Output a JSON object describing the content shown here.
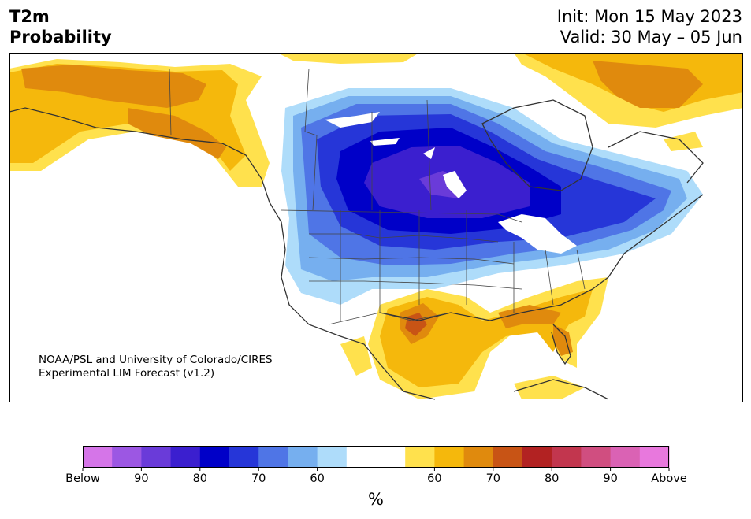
{
  "header": {
    "title_line1": "T2m",
    "title_line2": "Probability",
    "init": "Init: Mon 15 May 2023",
    "valid": "Valid: 30 May – 05 Jun"
  },
  "credit": {
    "line1": "NOAA/PSL and University of Colorado/CIRES",
    "line2": "Experimental LIM Forecast (v1.2)"
  },
  "colorbar": {
    "unit": "%",
    "colors": [
      "#d575e8",
      "#9c57e3",
      "#6a3bd9",
      "#3b1fcf",
      "#0000c8",
      "#2636d8",
      "#4f75e6",
      "#76afef",
      "#aedcfa",
      "#ffffff",
      "#ffffff",
      "#ffe14d",
      "#f5b80c",
      "#e08a0d",
      "#c85415",
      "#b22222",
      "#c2364e",
      "#d04e80",
      "#da62b4",
      "#e878dd"
    ],
    "labels": [
      "Below",
      "90",
      "80",
      "70",
      "60",
      "60",
      "70",
      "80",
      "90",
      "Above"
    ]
  }
}
